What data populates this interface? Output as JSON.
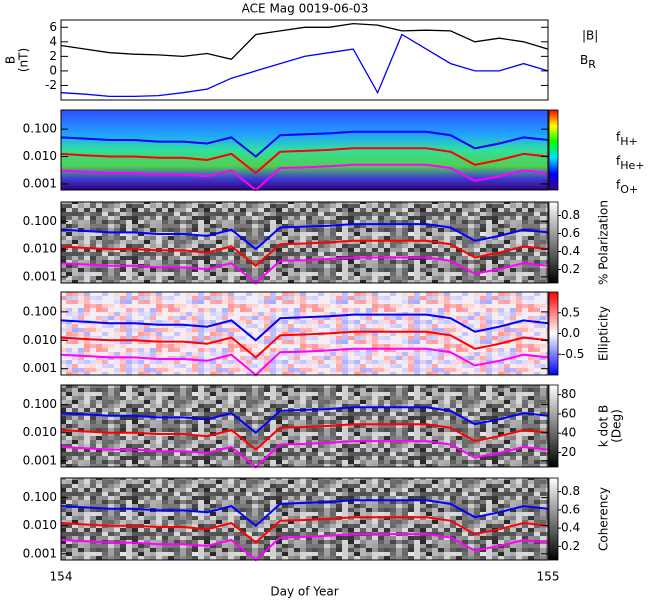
{
  "chart_data": [
    {
      "type": "line",
      "title": "ACE Mag 0019-06-03",
      "ylabel": [
        "B",
        "(nT)"
      ],
      "x": [
        154.0,
        154.05,
        154.1,
        154.15,
        154.2,
        154.25,
        154.3,
        154.35,
        154.4,
        154.45,
        154.5,
        154.55,
        154.6,
        154.65,
        154.7,
        154.75,
        154.8,
        154.85,
        154.9,
        154.95,
        155.0
      ],
      "xlim": [
        154,
        155
      ],
      "ylim": [
        -4,
        7
      ],
      "yticks": [
        -2,
        0,
        2,
        4,
        6
      ],
      "legend": "right",
      "series": [
        {
          "name": "|B|",
          "color": "#000000",
          "values": [
            3.5,
            3.0,
            2.5,
            2.3,
            2.2,
            2.0,
            2.4,
            1.6,
            5.0,
            5.5,
            6.0,
            6.0,
            6.5,
            6.3,
            5.5,
            5.6,
            5.5,
            4.0,
            4.5,
            4.0,
            3.0
          ]
        },
        {
          "name": "B_R",
          "color": "#0000ff",
          "values": [
            -3.0,
            -3.2,
            -3.5,
            -3.5,
            -3.4,
            -3.0,
            -2.5,
            -1.0,
            0.0,
            1.0,
            2.0,
            2.5,
            3.0,
            -3.0,
            5.0,
            3.0,
            1.0,
            0.0,
            0.0,
            1.0,
            0.0
          ]
        }
      ]
    },
    {
      "type": "line",
      "yscale": "log",
      "x": [
        154.0,
        154.05,
        154.1,
        154.15,
        154.2,
        154.25,
        154.3,
        154.35,
        154.4,
        154.45,
        154.5,
        154.55,
        154.6,
        154.65,
        154.7,
        154.75,
        154.8,
        154.85,
        154.9,
        154.95,
        155.0
      ],
      "xlim": [
        154,
        155
      ],
      "ylim": [
        0.0006,
        0.5
      ],
      "yticks": [
        0.001,
        {
          "value": 0.01,
          "label": "0.010"
        },
        {
          "value": 0.1,
          "label": "0.100"
        }
      ],
      "colorbar": {
        "colormap": "rainbow"
      },
      "series": [
        {
          "name": "f_H+",
          "color": "#0000ff",
          "values": [
            0.05,
            0.045,
            0.04,
            0.04,
            0.035,
            0.035,
            0.03,
            0.05,
            0.01,
            0.06,
            0.065,
            0.07,
            0.08,
            0.08,
            0.08,
            0.08,
            0.06,
            0.02,
            0.03,
            0.05,
            0.04
          ]
        },
        {
          "name": "f_He+",
          "color": "#ff0000",
          "values": [
            0.0125,
            0.011,
            0.01,
            0.01,
            0.009,
            0.009,
            0.0075,
            0.0125,
            0.0025,
            0.015,
            0.016,
            0.0175,
            0.02,
            0.02,
            0.02,
            0.02,
            0.015,
            0.005,
            0.0075,
            0.0125,
            0.01
          ]
        },
        {
          "name": "f_O+",
          "color": "#ff00ff",
          "values": [
            0.0031,
            0.0028,
            0.0025,
            0.0025,
            0.0022,
            0.0022,
            0.0019,
            0.0031,
            0.0006,
            0.0038,
            0.004,
            0.0044,
            0.005,
            0.005,
            0.005,
            0.005,
            0.0038,
            0.0013,
            0.0019,
            0.0031,
            0.0025
          ]
        }
      ]
    },
    {
      "type": "line",
      "yscale": "log",
      "x": [
        154.0,
        154.05,
        154.1,
        154.15,
        154.2,
        154.25,
        154.3,
        154.35,
        154.4,
        154.45,
        154.5,
        154.55,
        154.6,
        154.65,
        154.7,
        154.75,
        154.8,
        154.85,
        154.9,
        154.95,
        155.0
      ],
      "xlim": [
        154,
        155
      ],
      "ylim": [
        0.0006,
        0.5
      ],
      "yticks": [
        0.001,
        {
          "value": 0.01,
          "label": "0.010"
        },
        {
          "value": 0.1,
          "label": "0.100"
        }
      ],
      "colorbar": {
        "colormap": "gray",
        "label": "% Polarization",
        "lim": [
          0.05,
          0.95
        ],
        "ticks": [
          0.2,
          0.4,
          0.6,
          0.8
        ]
      },
      "series": [
        {
          "color": "#0000ff",
          "values": [
            0.05,
            0.045,
            0.04,
            0.04,
            0.035,
            0.035,
            0.03,
            0.05,
            0.01,
            0.06,
            0.065,
            0.07,
            0.08,
            0.08,
            0.08,
            0.08,
            0.06,
            0.02,
            0.03,
            0.05,
            0.04
          ]
        },
        {
          "color": "#ff0000",
          "values": [
            0.0125,
            0.011,
            0.01,
            0.01,
            0.009,
            0.009,
            0.0075,
            0.0125,
            0.0025,
            0.015,
            0.016,
            0.0175,
            0.02,
            0.02,
            0.02,
            0.02,
            0.015,
            0.005,
            0.0075,
            0.0125,
            0.01
          ]
        },
        {
          "color": "#ff00ff",
          "values": [
            0.0031,
            0.0028,
            0.0025,
            0.0025,
            0.0022,
            0.0022,
            0.0019,
            0.0031,
            0.0006,
            0.0038,
            0.004,
            0.0044,
            0.005,
            0.005,
            0.005,
            0.005,
            0.0038,
            0.0013,
            0.0019,
            0.0031,
            0.0025
          ]
        }
      ]
    },
    {
      "type": "line",
      "yscale": "log",
      "x": [
        154.0,
        154.05,
        154.1,
        154.15,
        154.2,
        154.25,
        154.3,
        154.35,
        154.4,
        154.45,
        154.5,
        154.55,
        154.6,
        154.65,
        154.7,
        154.75,
        154.8,
        154.85,
        154.9,
        154.95,
        155.0
      ],
      "xlim": [
        154,
        155
      ],
      "ylim": [
        0.0006,
        0.5
      ],
      "yticks": [
        0.001,
        {
          "value": 0.01,
          "label": "0.010"
        },
        {
          "value": 0.1,
          "label": "0.100"
        }
      ],
      "colorbar": {
        "colormap": "bwr",
        "label": "Ellipticity",
        "lim": [
          -1,
          1
        ],
        "ticks": [
          -0.5,
          {
            "value": 0,
            "label": "0.0"
          },
          0.5
        ]
      },
      "series": [
        {
          "color": "#0000ff",
          "values": [
            0.05,
            0.045,
            0.04,
            0.04,
            0.035,
            0.035,
            0.03,
            0.05,
            0.01,
            0.06,
            0.065,
            0.07,
            0.08,
            0.08,
            0.08,
            0.08,
            0.06,
            0.02,
            0.03,
            0.05,
            0.04
          ]
        },
        {
          "color": "#ff0000",
          "values": [
            0.0125,
            0.011,
            0.01,
            0.01,
            0.009,
            0.009,
            0.0075,
            0.0125,
            0.0025,
            0.015,
            0.016,
            0.0175,
            0.02,
            0.02,
            0.02,
            0.02,
            0.015,
            0.005,
            0.0075,
            0.0125,
            0.01
          ]
        },
        {
          "color": "#ff00ff",
          "values": [
            0.0031,
            0.0028,
            0.0025,
            0.0025,
            0.0022,
            0.0022,
            0.0019,
            0.0031,
            0.0006,
            0.0038,
            0.004,
            0.0044,
            0.005,
            0.005,
            0.005,
            0.005,
            0.0038,
            0.0013,
            0.0019,
            0.0031,
            0.0025
          ]
        }
      ]
    },
    {
      "type": "line",
      "yscale": "log",
      "x": [
        154.0,
        154.05,
        154.1,
        154.15,
        154.2,
        154.25,
        154.3,
        154.35,
        154.4,
        154.45,
        154.5,
        154.55,
        154.6,
        154.65,
        154.7,
        154.75,
        154.8,
        154.85,
        154.9,
        154.95,
        155.0
      ],
      "xlim": [
        154,
        155
      ],
      "ylim": [
        0.0006,
        0.5
      ],
      "yticks": [
        0.001,
        {
          "value": 0.01,
          "label": "0.010"
        },
        {
          "value": 0.1,
          "label": "0.100"
        }
      ],
      "colorbar": {
        "colormap": "gray",
        "label": [
          "k dot B",
          "(Deg)"
        ],
        "lim": [
          5,
          90
        ],
        "ticks": [
          20,
          40,
          60,
          80
        ]
      },
      "series": [
        {
          "color": "#0000ff",
          "values": [
            0.05,
            0.045,
            0.04,
            0.04,
            0.035,
            0.035,
            0.03,
            0.05,
            0.01,
            0.06,
            0.065,
            0.07,
            0.08,
            0.08,
            0.08,
            0.08,
            0.06,
            0.02,
            0.03,
            0.05,
            0.04
          ]
        },
        {
          "color": "#ff0000",
          "values": [
            0.0125,
            0.011,
            0.01,
            0.01,
            0.009,
            0.009,
            0.0075,
            0.0125,
            0.0025,
            0.015,
            0.016,
            0.0175,
            0.02,
            0.02,
            0.02,
            0.02,
            0.015,
            0.005,
            0.0075,
            0.0125,
            0.01
          ]
        },
        {
          "color": "#ff00ff",
          "values": [
            0.0031,
            0.0028,
            0.0025,
            0.0025,
            0.0022,
            0.0022,
            0.0019,
            0.0031,
            0.0006,
            0.0038,
            0.004,
            0.0044,
            0.005,
            0.005,
            0.005,
            0.005,
            0.0038,
            0.0013,
            0.0019,
            0.0031,
            0.0025
          ]
        }
      ]
    },
    {
      "type": "line",
      "yscale": "log",
      "x": [
        154.0,
        154.05,
        154.1,
        154.15,
        154.2,
        154.25,
        154.3,
        154.35,
        154.4,
        154.45,
        154.5,
        154.55,
        154.6,
        154.65,
        154.7,
        154.75,
        154.8,
        154.85,
        154.9,
        154.95,
        155.0
      ],
      "xlim": [
        154,
        155
      ],
      "ylim": [
        0.0006,
        0.5
      ],
      "yticks": [
        0.001,
        {
          "value": 0.01,
          "label": "0.010"
        },
        {
          "value": 0.1,
          "label": "0.100"
        }
      ],
      "xlabel": "Day of Year",
      "xticks": [
        154,
        155
      ],
      "colorbar": {
        "colormap": "gray",
        "label": "Coherency",
        "lim": [
          0.05,
          0.95
        ],
        "ticks": [
          0.2,
          0.4,
          0.6,
          0.8
        ]
      },
      "series": [
        {
          "color": "#0000ff",
          "values": [
            0.05,
            0.045,
            0.04,
            0.04,
            0.035,
            0.035,
            0.03,
            0.05,
            0.01,
            0.06,
            0.065,
            0.07,
            0.08,
            0.08,
            0.08,
            0.08,
            0.06,
            0.02,
            0.03,
            0.05,
            0.04
          ]
        },
        {
          "color": "#ff0000",
          "values": [
            0.0125,
            0.011,
            0.01,
            0.01,
            0.009,
            0.009,
            0.0075,
            0.0125,
            0.0025,
            0.015,
            0.016,
            0.0175,
            0.02,
            0.02,
            0.02,
            0.02,
            0.015,
            0.005,
            0.0075,
            0.0125,
            0.01
          ]
        },
        {
          "color": "#ff00ff",
          "values": [
            0.0031,
            0.0028,
            0.0025,
            0.0025,
            0.0022,
            0.0022,
            0.0019,
            0.0031,
            0.0006,
            0.0038,
            0.004,
            0.0044,
            0.005,
            0.005,
            0.005,
            0.005,
            0.0038,
            0.0013,
            0.0019,
            0.0031,
            0.0025
          ]
        }
      ]
    }
  ]
}
